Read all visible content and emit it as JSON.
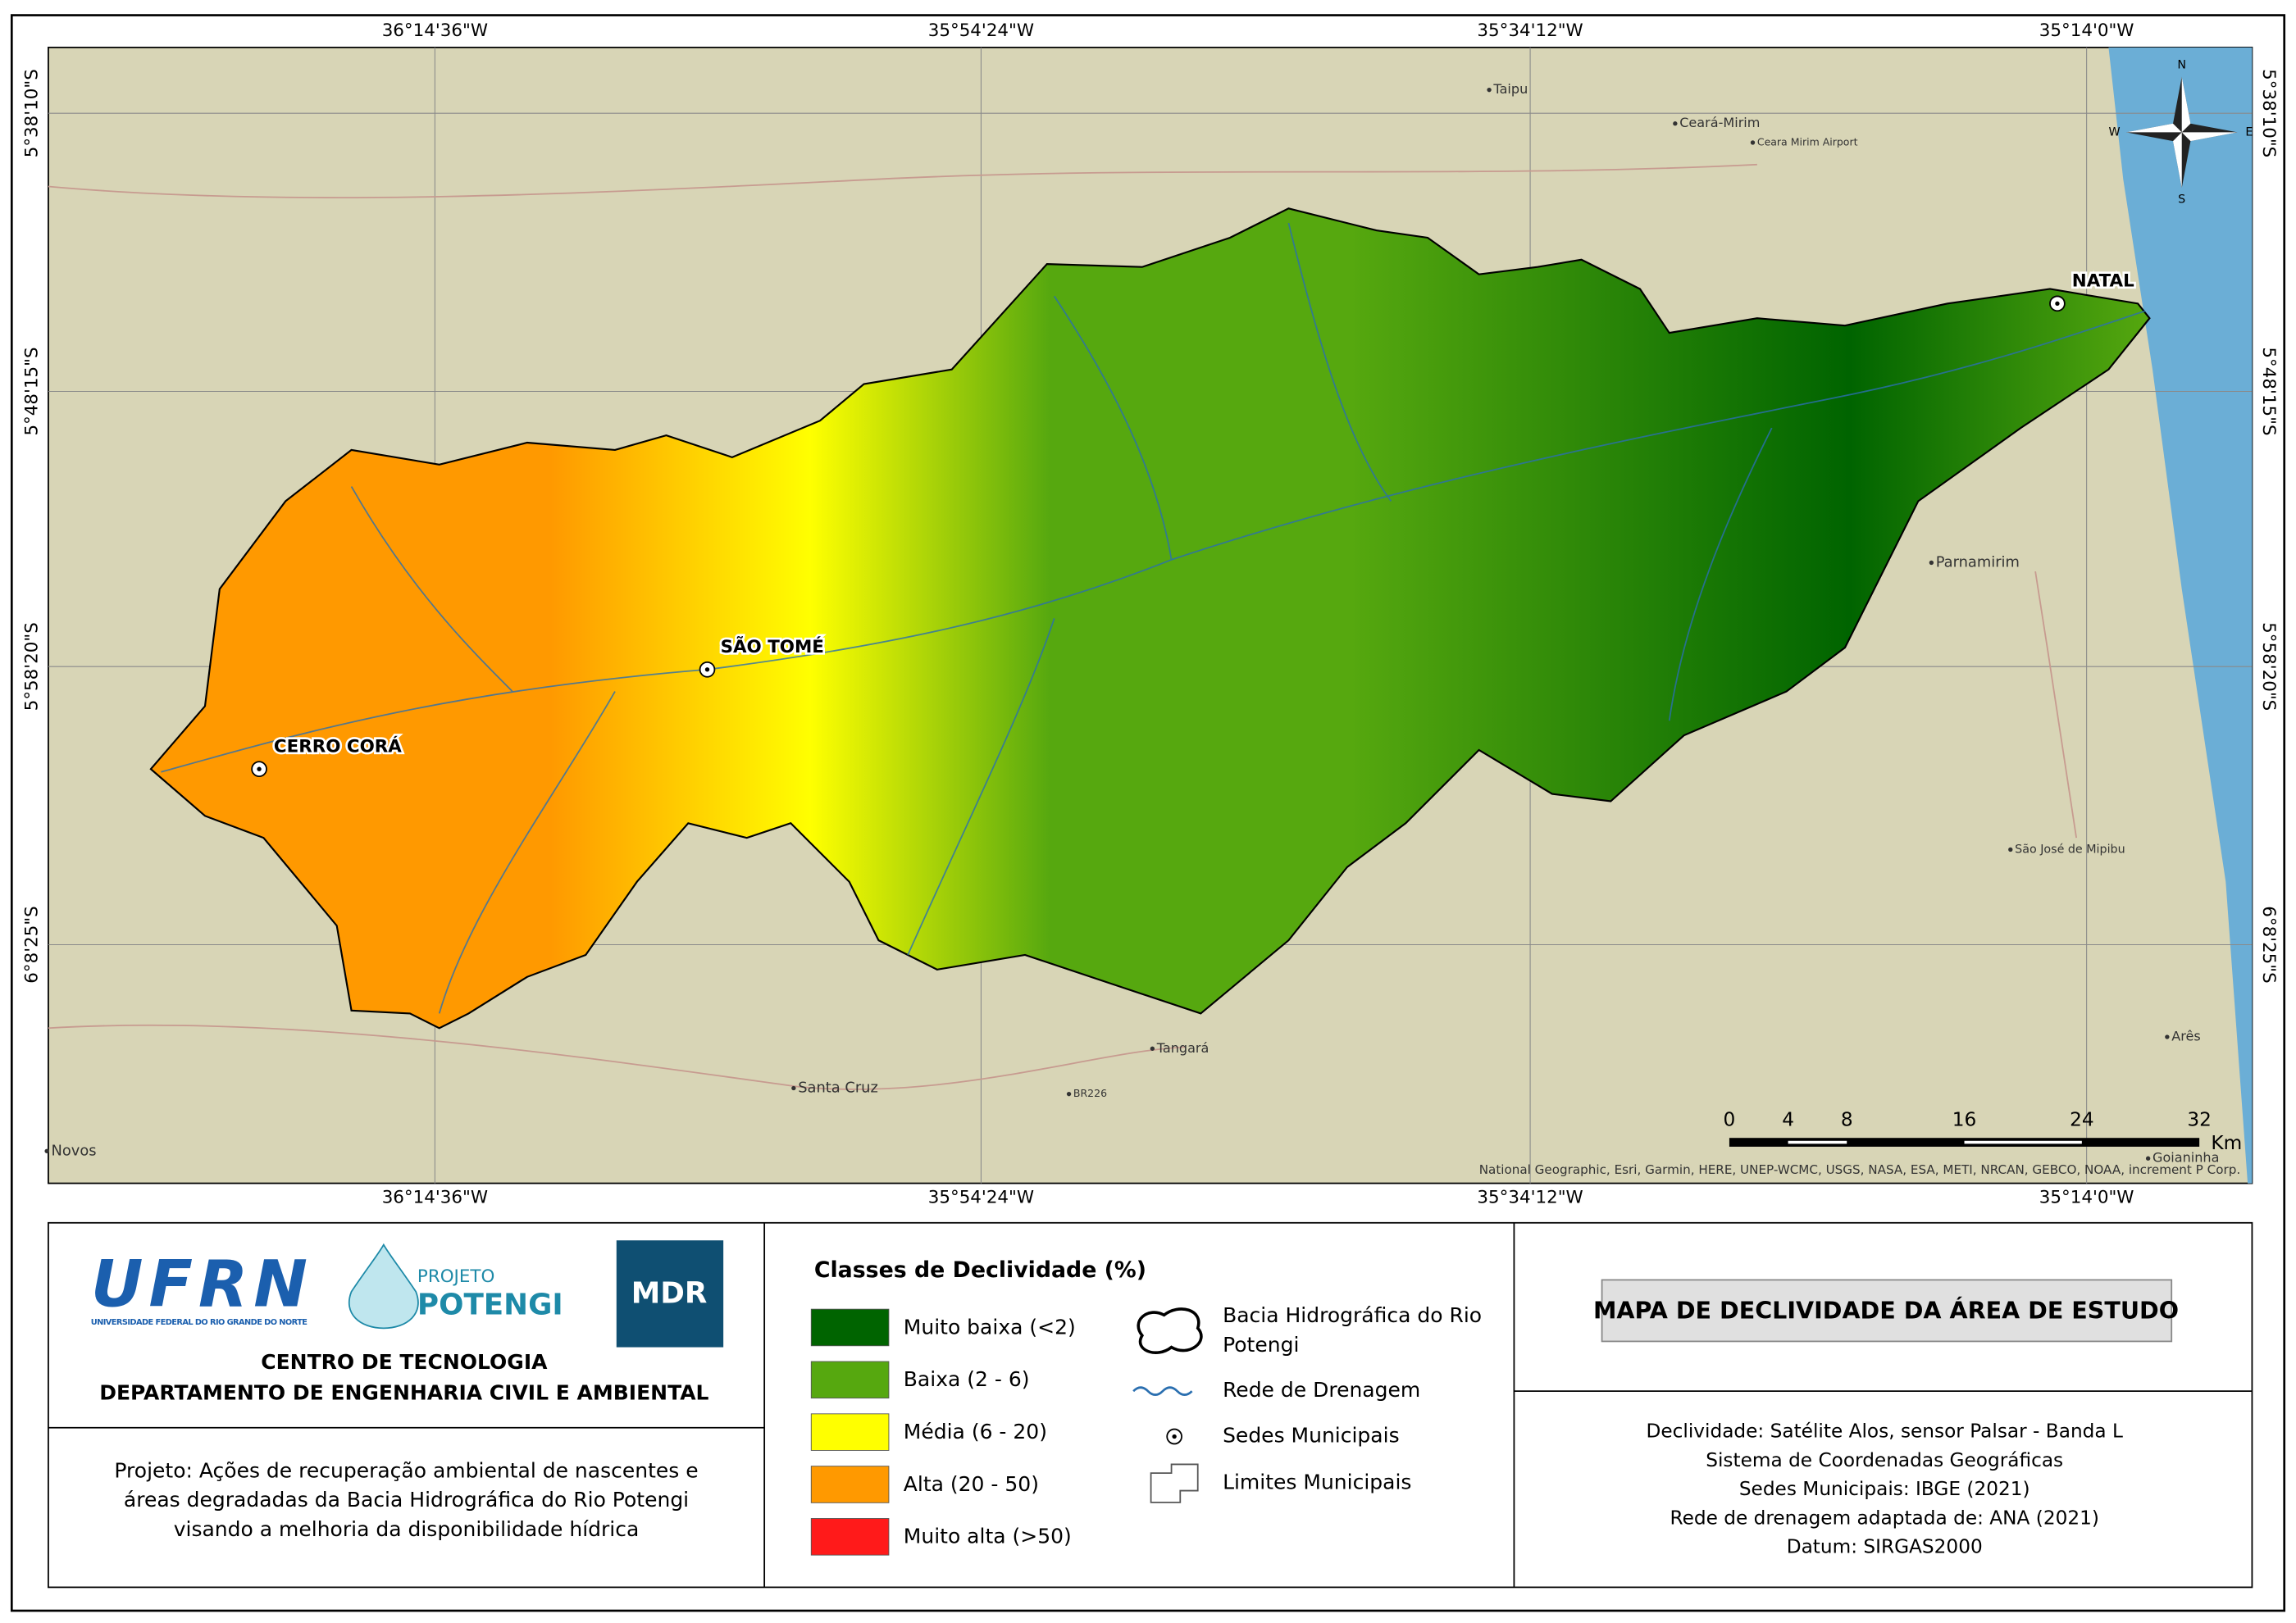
{
  "map": {
    "top_labels": [
      "36°14'36\"W",
      "35°54'24\"W",
      "35°34'12\"W",
      "35°14'0\"W"
    ],
    "bottom_labels": [
      "36°14'36\"W",
      "35°54'24\"W",
      "35°34'12\"W",
      "35°14'0\"W"
    ],
    "left_labels": [
      "5°38'10\"S",
      "5°48'15\"S",
      "5°58'20\"S",
      "6°8'25\"S"
    ],
    "right_labels": [
      "5°38'10\"S",
      "5°48'15\"S",
      "5°58'20\"S",
      "6°8'25\"S"
    ],
    "seats": [
      "NATAL",
      "SÃO TOMÉ",
      "CERRO CORÁ"
    ],
    "places": [
      "Parnamirim",
      "Taipu",
      "Ceará-Mirim",
      "Ceara Mirim Airport",
      "São José de Mipibu",
      "Santa Cruz",
      "Tangará",
      "Arês",
      "Goianinha",
      "Novos",
      "BR226"
    ],
    "compass": [
      "N",
      "S",
      "E",
      "W"
    ],
    "scale": {
      "ticks": [
        0,
        4,
        8,
        16,
        24,
        32
      ],
      "unit": "Km"
    },
    "attribution": "National Geographic, Esri, Garmin, HERE, UNEP-WCMC, USGS, NASA, ESA, METI, NRCAN, GEBCO, NOAA, increment P Corp."
  },
  "logos": {
    "ufrn": "UFRN",
    "ufrn_sub": "UNIVERSIDADE FEDERAL DO RIO GRANDE DO NORTE",
    "projeto": "PROJETO",
    "potengi": "POTENGI",
    "mdr": "MDR"
  },
  "institution": [
    "CENTRO DE TECNOLOGIA",
    "DEPARTAMENTO DE ENGENHARIA CIVIL E AMBIENTAL"
  ],
  "project": "Projeto: Ações de recuperação ambiental de nascentes e áreas degradadas da Bacia Hidrográfica do Rio Potengi visando a melhoria da disponibilidade hídrica",
  "legend": {
    "title": "Classes de Declividade (%)",
    "classes": [
      {
        "label": "Muito baixa (<2)",
        "color": "#006400"
      },
      {
        "label": "Baixa (2 - 6)",
        "color": "#56a80f"
      },
      {
        "label": "Média (6 - 20)",
        "color": "#ffff00"
      },
      {
        "label": "Alta (20 - 50)",
        "color": "#ff9900"
      },
      {
        "label": "Muito alta (>50)",
        "color": "#ff1a1a"
      }
    ],
    "symbols": [
      "Bacia Hidrográfica do Rio Potengi",
      "Rede de Drenagem",
      "Sedes Municipais",
      "Limites Municipais"
    ]
  },
  "title": "MAPA DE DECLIVIDADE DA ÁREA DE ESTUDO",
  "metadata": [
    "Declividade: Satélite Alos, sensor Palsar - Banda L",
    "Sistema de Coordenadas Geográficas",
    "Sedes Municipais: IBGE (2021)",
    "Rede de drenagem adaptada de: ANA (2021)",
    "Datum: SIRGAS2000"
  ]
}
